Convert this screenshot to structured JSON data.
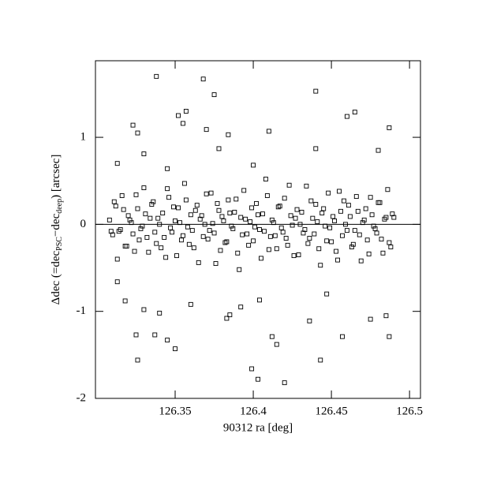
{
  "chart_data": {
    "type": "scatter",
    "xlabel": "90312 ra [deg]",
    "ylabel": [
      "Δdec (=dec",
      "PSC",
      "−dec",
      "deep",
      ") [arcsec]"
    ],
    "xlim": [
      126.299,
      126.507
    ],
    "ylim": [
      -2,
      1.88
    ],
    "xticks": [
      126.35,
      126.4,
      126.45,
      126.5
    ],
    "yticks": [
      -2,
      -1,
      0,
      1
    ],
    "hline": 0,
    "color": "#000000",
    "x": [
      126.308,
      126.31,
      126.312,
      126.314,
      126.316,
      126.318,
      126.32,
      126.322,
      126.324,
      126.326,
      126.328,
      126.33,
      126.332,
      126.334,
      126.336,
      126.338,
      126.34,
      126.342,
      126.344,
      126.346,
      126.348,
      126.35,
      126.352,
      126.354,
      126.356,
      126.358,
      126.36,
      126.362,
      126.364,
      126.366,
      126.368,
      126.37,
      126.372,
      126.374,
      126.376,
      126.378,
      126.38,
      126.382,
      126.384,
      126.386,
      126.388,
      126.39,
      126.392,
      126.394,
      126.396,
      126.398,
      126.4,
      126.402,
      126.404,
      126.406,
      126.408,
      126.41,
      126.412,
      126.414,
      126.416,
      126.418,
      126.42,
      126.422,
      126.424,
      126.426,
      126.428,
      126.43,
      126.432,
      126.434,
      126.436,
      126.438,
      126.44,
      126.442,
      126.444,
      126.446,
      126.448,
      126.45,
      126.452,
      126.454,
      126.456,
      126.458,
      126.46,
      126.462,
      126.464,
      126.466,
      126.468,
      126.47,
      126.472,
      126.474,
      126.476,
      126.478,
      126.48,
      126.482,
      126.484,
      126.486,
      126.488,
      126.49,
      126.309,
      126.311,
      126.313,
      126.315,
      126.317,
      126.319,
      126.321,
      126.323,
      126.325,
      126.327,
      126.329,
      126.331,
      126.333,
      126.335,
      126.337,
      126.339,
      126.341,
      126.343,
      126.345,
      126.347,
      126.349,
      126.351,
      126.353,
      126.355,
      126.357,
      126.359,
      126.361,
      126.363,
      126.365,
      126.367,
      126.369,
      126.371,
      126.373,
      126.375,
      126.377,
      126.379,
      126.381,
      126.383,
      126.385,
      126.387,
      126.389,
      126.391,
      126.393,
      126.395,
      126.397,
      126.399,
      126.401,
      126.403,
      126.405,
      126.407,
      126.409,
      126.411,
      126.413,
      126.415,
      126.417,
      126.419,
      126.421,
      126.423,
      126.425,
      126.427,
      126.429,
      126.431,
      126.433,
      126.435,
      126.437,
      126.439,
      126.441,
      126.443,
      126.445,
      126.447,
      126.449,
      126.451,
      126.453,
      126.455,
      126.457,
      126.459,
      126.461,
      126.463,
      126.465,
      126.467,
      126.469,
      126.471,
      126.473,
      126.475,
      126.477,
      126.479,
      126.481,
      126.483,
      126.485,
      126.487,
      126.489,
      126.338,
      126.368,
      126.375,
      126.44,
      126.465,
      126.46,
      126.352,
      126.357,
      126.355,
      126.323,
      126.326,
      126.37,
      126.384,
      126.41,
      126.487,
      126.378,
      126.44,
      126.48,
      126.33,
      126.4,
      126.313,
      126.345,
      126.326,
      126.399,
      126.403,
      126.42,
      126.443,
      126.35,
      126.345,
      126.415,
      126.412,
      126.325,
      126.337,
      126.457,
      126.487,
      126.383,
      126.385,
      126.436,
      126.475,
      126.485,
      126.34,
      126.33,
      126.318,
      126.36,
      126.392,
      126.404,
      126.447,
      126.313
    ],
    "values": [
      0.05,
      -0.12,
      0.21,
      -0.08,
      0.33,
      -0.25,
      0.1,
      0.02,
      -0.31,
      0.18,
      -0.05,
      0.42,
      -0.15,
      0.07,
      0.26,
      -0.22,
      0.0,
      0.13,
      -0.38,
      0.31,
      -0.09,
      0.04,
      0.19,
      -0.18,
      0.47,
      -0.03,
      0.11,
      -0.27,
      0.22,
      0.06,
      -0.14,
      0.35,
      -0.07,
      0.01,
      -0.45,
      0.16,
      0.09,
      -0.21,
      0.28,
      -0.02,
      0.14,
      -0.33,
      0.08,
      0.39,
      -0.11,
      0.03,
      -0.19,
      0.24,
      -0.06,
      0.12,
      0.52,
      -0.29,
      0.05,
      -0.13,
      0.2,
      -0.04,
      0.3,
      -0.24,
      0.1,
      -0.36,
      0.17,
      0.0,
      -0.1,
      0.44,
      -0.16,
      0.07,
      0.23,
      -0.28,
      0.13,
      -0.02,
      0.36,
      -0.2,
      0.04,
      -0.41,
      0.15,
      0.27,
      -0.07,
      0.09,
      -0.23,
      0.32,
      -0.12,
      0.02,
      0.18,
      -0.34,
      0.11,
      -0.05,
      0.25,
      -0.17,
      0.06,
      0.4,
      -0.26,
      0.08,
      -0.08,
      0.26,
      -0.4,
      -0.06,
      0.17,
      -0.25,
      0.05,
      -0.11,
      0.34,
      -0.18,
      -0.02,
      0.12,
      -0.32,
      0.23,
      -0.09,
      0.07,
      -0.27,
      -0.15,
      0.41,
      -0.04,
      0.2,
      -0.36,
      0.02,
      -0.13,
      0.28,
      -0.23,
      -0.07,
      0.16,
      -0.44,
      0.1,
      0.0,
      -0.17,
      0.36,
      -0.1,
      0.24,
      -0.3,
      0.04,
      -0.2,
      0.13,
      -0.05,
      0.29,
      -0.52,
      -0.12,
      0.06,
      -0.24,
      0.19,
      -0.03,
      0.11,
      -0.39,
      -0.08,
      0.33,
      -0.14,
      0.02,
      -0.28,
      0.21,
      -0.09,
      -0.16,
      0.45,
      -0.01,
      0.07,
      -0.35,
      0.14,
      -0.06,
      -0.22,
      0.27,
      -0.11,
      0.03,
      -0.47,
      0.18,
      -0.19,
      -0.04,
      0.09,
      -0.31,
      0.38,
      -0.13,
      0.0,
      0.22,
      -0.26,
      -0.07,
      0.15,
      -0.42,
      0.05,
      -0.18,
      0.31,
      -0.02,
      -0.1,
      0.25,
      -0.33,
      0.08,
      -0.21,
      0.12,
      1.7,
      1.67,
      1.49,
      1.53,
      1.29,
      1.24,
      1.25,
      1.3,
      1.16,
      1.14,
      1.05,
      1.09,
      1.03,
      1.07,
      1.11,
      0.87,
      0.87,
      0.85,
      0.81,
      0.68,
      0.7,
      0.64,
      -1.56,
      -1.66,
      -1.78,
      -1.82,
      -1.56,
      -1.43,
      -1.33,
      -1.38,
      -1.29,
      -1.27,
      -1.27,
      -1.29,
      -1.29,
      -1.08,
      -1.04,
      -1.11,
      -1.09,
      -1.05,
      -1.02,
      -0.98,
      -0.88,
      -0.92,
      -0.95,
      -0.87,
      -0.8,
      -0.66
    ]
  }
}
